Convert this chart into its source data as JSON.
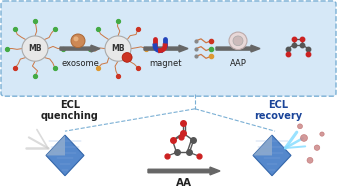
{
  "bg_color": "#ffffff",
  "top_box_facecolor": "#d6e8f7",
  "top_box_edgecolor": "#7aafd4",
  "arrow_color": "#666666",
  "label_exosome": "exosome",
  "label_magnet": "magnet",
  "label_aap": "AAP",
  "label_aa": "AA",
  "label_ecl_q": "ECL\nquenching",
  "label_ecl_r": "ECL\nrecovery",
  "mb_label": "MB",
  "arm_line_color": "#cc7744",
  "arm_dot_colors": [
    "#cc3322",
    "#44aa44",
    "#dd9933"
  ],
  "magnet_red": "#cc2222",
  "magnet_blue": "#2244bb",
  "mol_bond_color": "#555555",
  "mol_o_color": "#cc2222",
  "mol_c_color": "#555555",
  "electrode_face": "#5588cc",
  "electrode_edge": "#3366aa",
  "electrode_grid": "#88aadd",
  "electrode_gray": "#aaaaaa",
  "beam_color_q": "#cccccc",
  "beam_color_r": "#aaddff",
  "ecl_dot_color": "#cc8888",
  "dashed_line_color": "#7aafd4",
  "ecl_q_text_color": "#222222",
  "ecl_r_text_color": "#1a4499"
}
